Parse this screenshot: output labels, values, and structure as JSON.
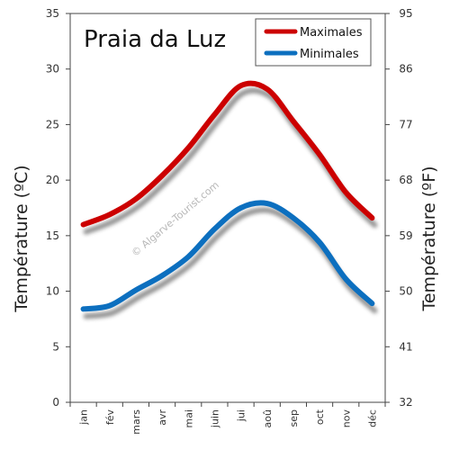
{
  "chart_data": {
    "type": "line",
    "title": "Praia da Luz",
    "ylabel_left": "Température (ºC)",
    "ylabel_right": "Température (ºF)",
    "ylim": [
      0,
      35
    ],
    "y_ticks": [
      "0",
      "5",
      "10",
      "15",
      "20",
      "25",
      "30",
      "35"
    ],
    "y_ticks_right": [
      "32",
      "41",
      "50",
      "59",
      "68",
      "77",
      "86",
      "95"
    ],
    "categories": [
      "jan",
      "fév",
      "mars",
      "avr",
      "mai",
      "juin",
      "jui",
      "aoû",
      "sep",
      "oct",
      "nov",
      "déc"
    ],
    "series": [
      {
        "name": "Maximales",
        "color": "#cc0000",
        "values": [
          16,
          16.9,
          18.3,
          20.4,
          22.9,
          25.9,
          28.5,
          28.2,
          25.3,
          22.3,
          18.9,
          16.6
        ]
      },
      {
        "name": "Minimales",
        "color": "#0c6fbf",
        "values": [
          8.4,
          8.7,
          10.1,
          11.4,
          13.1,
          15.6,
          17.5,
          17.9,
          16.6,
          14.4,
          11.1,
          8.9
        ]
      }
    ],
    "legend_position": "top-right",
    "watermark": "© Algarve-Tourist.com",
    "grid": false
  }
}
